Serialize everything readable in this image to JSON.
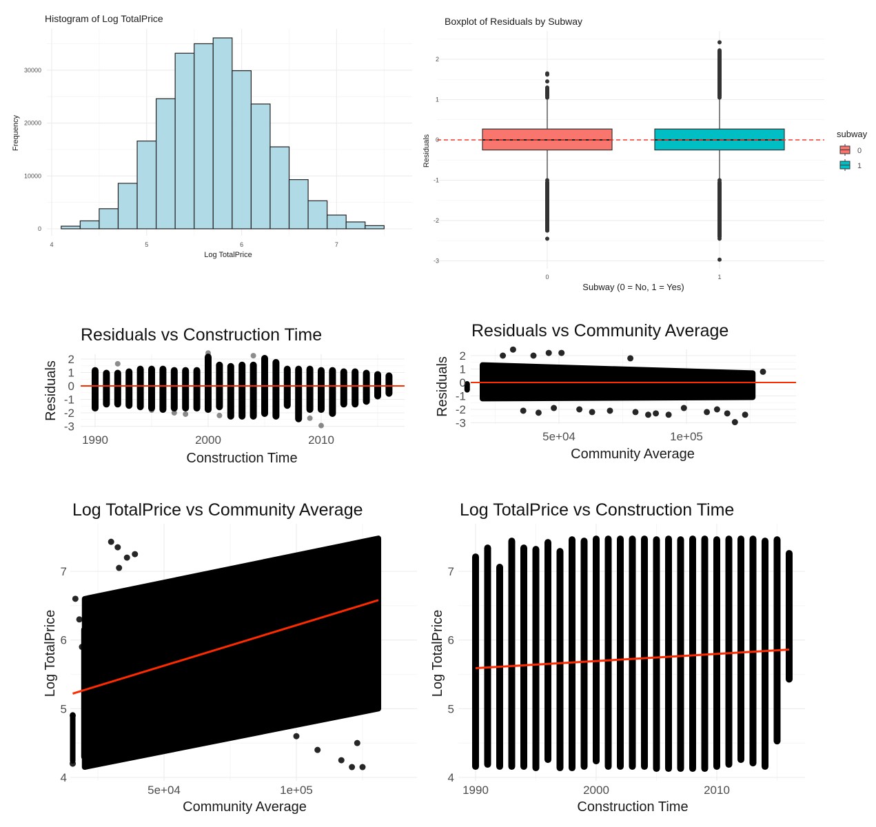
{
  "chart_data": [
    {
      "id": "hist",
      "type": "bar",
      "title": "Histogram of Log TotalPrice",
      "xlabel": "Log TotalPrice",
      "ylabel": "Frequency",
      "bin_width": 0.2,
      "bin_starts": [
        4.1,
        4.3,
        4.5,
        4.7,
        4.9,
        5.1,
        5.3,
        5.5,
        5.7,
        5.9,
        6.1,
        6.3,
        6.5,
        6.7,
        6.9,
        7.1,
        7.3
      ],
      "values": [
        500,
        1500,
        3800,
        8600,
        16600,
        24600,
        33200,
        35000,
        36100,
        29900,
        23600,
        15500,
        9300,
        5300,
        2600,
        1300,
        600
      ],
      "xlim": [
        4,
        7.65
      ],
      "ylim": [
        0,
        36500
      ],
      "x_ticks": [
        4,
        5,
        6,
        7
      ],
      "y_ticks": [
        0,
        10000,
        20000,
        30000
      ],
      "fill": "#add8e6",
      "grid": true
    },
    {
      "id": "box",
      "type": "box",
      "title": "Boxplot of Residuals by Subway",
      "xlabel": "Subway (0 = No, 1 = Yes)",
      "ylabel": "Residuals",
      "categories": [
        "0",
        "1"
      ],
      "series": [
        {
          "name": "0",
          "q1": -0.25,
          "median": 0.0,
          "q3": 0.27,
          "whisker_low": -1.0,
          "whisker_high": 1.03,
          "outliers_high": [
            1.05,
            1.1,
            1.15,
            1.2,
            1.25,
            1.3,
            1.45,
            1.62,
            1.65
          ],
          "outliers_low": [
            -1.0,
            -1.1,
            -1.2,
            -1.3,
            -1.4,
            -1.5,
            -1.6,
            -1.7,
            -1.8,
            -1.9,
            -2.0,
            -2.1,
            -2.2,
            -2.25,
            -2.45
          ],
          "color": "#f8766d"
        },
        {
          "name": "1",
          "q1": -0.25,
          "median": 0.0,
          "q3": 0.27,
          "whisker_low": -1.0,
          "whisker_high": 1.03,
          "outliers_high": [
            1.05,
            1.15,
            1.25,
            1.35,
            1.45,
            1.55,
            1.65,
            1.75,
            1.85,
            1.95,
            2.05,
            2.15,
            2.22,
            2.42
          ],
          "outliers_low": [
            -1.0,
            -1.1,
            -1.2,
            -1.3,
            -1.4,
            -1.5,
            -1.6,
            -1.7,
            -1.8,
            -1.9,
            -2.0,
            -2.1,
            -2.2,
            -2.3,
            -2.4,
            -2.45,
            -2.97
          ],
          "color": "#00bfc4"
        }
      ],
      "reference_line": 0,
      "ylim": [
        -3.15,
        2.5
      ],
      "y_ticks": [
        -3,
        -2,
        -1,
        0,
        1,
        2
      ],
      "legend": {
        "title": "subway",
        "entries": [
          "0",
          "1"
        ],
        "position": "right"
      },
      "grid": true
    },
    {
      "id": "res-ct",
      "type": "scatter",
      "title": "Residuals vs Construction Time",
      "xlabel": "Construction Time",
      "ylabel": "Residuals",
      "x_ticks": [
        1990,
        2000,
        2010
      ],
      "y_ticks": [
        -3,
        -2,
        -1,
        0,
        1,
        2
      ],
      "xlim": [
        1988.6,
        2016.8
      ],
      "ylim": [
        -3.15,
        2.5
      ],
      "columns": [
        {
          "x": 1990,
          "lo": -1.7,
          "hi": 1.2
        },
        {
          "x": 1991,
          "lo": -1.4,
          "hi": 1.0
        },
        {
          "x": 1992,
          "lo": -1.4,
          "hi": 1.0,
          "extra": [
            1.65
          ]
        },
        {
          "x": 1993,
          "lo": -1.5,
          "hi": 1.1
        },
        {
          "x": 1994,
          "lo": -1.6,
          "hi": 1.3
        },
        {
          "x": 1995,
          "lo": -1.7,
          "hi": 1.3,
          "extra": [
            -1.8
          ]
        },
        {
          "x": 1996,
          "lo": -1.8,
          "hi": 1.3
        },
        {
          "x": 1997,
          "lo": -1.7,
          "hi": 1.2,
          "extra": [
            -2.0
          ]
        },
        {
          "x": 1998,
          "lo": -1.7,
          "hi": 1.2,
          "extra": [
            -2.1
          ]
        },
        {
          "x": 1999,
          "lo": -1.7,
          "hi": 1.2
        },
        {
          "x": 2000,
          "lo": -1.8,
          "hi": 2.2,
          "extra": [
            2.45
          ]
        },
        {
          "x": 2001,
          "lo": -1.6,
          "hi": 1.6,
          "extra": [
            -2.2
          ]
        },
        {
          "x": 2002,
          "lo": -2.3,
          "hi": 1.5
        },
        {
          "x": 2003,
          "lo": -2.3,
          "hi": 1.6
        },
        {
          "x": 2004,
          "lo": -2.3,
          "hi": 1.6,
          "extra": [
            2.25
          ]
        },
        {
          "x": 2005,
          "lo": -2.1,
          "hi": 2.1
        },
        {
          "x": 2006,
          "lo": -2.3,
          "hi": 1.8
        },
        {
          "x": 2007,
          "lo": -1.5,
          "hi": 1.3
        },
        {
          "x": 2008,
          "lo": -2.5,
          "hi": 1.3
        },
        {
          "x": 2009,
          "lo": -1.8,
          "hi": 1.3,
          "extra": [
            -2.4
          ]
        },
        {
          "x": 2010,
          "lo": -1.8,
          "hi": 1.2,
          "extra": [
            -2.95
          ]
        },
        {
          "x": 2011,
          "lo": -2.1,
          "hi": 1.2
        },
        {
          "x": 2012,
          "lo": -1.4,
          "hi": 1.1
        },
        {
          "x": 2013,
          "lo": -1.4,
          "hi": 1.1
        },
        {
          "x": 2014,
          "lo": -1.2,
          "hi": 1.0
        },
        {
          "x": 2015,
          "lo": -0.8,
          "hi": 0.9
        },
        {
          "x": 2016,
          "lo": -0.6,
          "hi": 0.8
        }
      ],
      "fit_line": {
        "x": [
          1988.6,
          2016.8
        ],
        "y": [
          0,
          0
        ],
        "color": "#ff2a00"
      },
      "grid": true
    },
    {
      "id": "res-ca",
      "type": "scatter",
      "title": "Residuals vs Community Average",
      "xlabel": "Community Average",
      "ylabel": "Residuals",
      "x_ticks": [
        50000,
        100000
      ],
      "x_tick_labels": [
        "5e+04",
        "1e+05"
      ],
      "y_ticks": [
        -3,
        -2,
        -1,
        0,
        1,
        2
      ],
      "xlim": [
        10000,
        134000
      ],
      "ylim": [
        -3.15,
        2.5
      ],
      "band": {
        "x_from": 20000,
        "x_to": 126000,
        "lo_start": -1.2,
        "lo_end": -1.1,
        "hi_start": 1.3,
        "hi_end": 0.7
      },
      "outliers": [
        [
          21000,
          0.7
        ],
        [
          24000,
          -1.1
        ],
        [
          28000,
          2.0
        ],
        [
          32000,
          2.45
        ],
        [
          36000,
          -2.1
        ],
        [
          40000,
          2.0
        ],
        [
          42000,
          -2.25
        ],
        [
          46000,
          2.2
        ],
        [
          48000,
          -1.9
        ],
        [
          51000,
          2.2
        ],
        [
          58000,
          -2.0
        ],
        [
          63000,
          -2.2
        ],
        [
          70000,
          -2.1
        ],
        [
          78000,
          1.8
        ],
        [
          80000,
          -2.2
        ],
        [
          85000,
          -2.4
        ],
        [
          88000,
          -2.3
        ],
        [
          93000,
          -2.4
        ],
        [
          99000,
          -1.9
        ],
        [
          108000,
          -2.2
        ],
        [
          112000,
          -2.0
        ],
        [
          116000,
          -2.3
        ],
        [
          119000,
          -2.95
        ],
        [
          123000,
          -2.4
        ],
        [
          130000,
          0.8
        ]
      ],
      "fit_line": {
        "x": [
          10000,
          134000
        ],
        "y": [
          0,
          0
        ],
        "color": "#ff2a00"
      },
      "grid": true
    },
    {
      "id": "lp-ca",
      "type": "scatter",
      "title": "Log TotalPrice vs Community Average",
      "xlabel": "Community Average",
      "ylabel": "Log TotalPrice",
      "x_ticks": [
        50000,
        100000
      ],
      "x_tick_labels": [
        "5e+04",
        "1e+05"
      ],
      "y_ticks": [
        4,
        5,
        6,
        7
      ],
      "xlim": [
        10000,
        134000
      ],
      "ylim": [
        3.98,
        7.52
      ],
      "band": {
        "x_from": 20000,
        "x_to": 131000,
        "lo_start": 4.15,
        "lo_end": 5.0,
        "hi_start": 6.6,
        "hi_end": 7.48
      },
      "outliers": [
        [
          15500,
          4.2
        ],
        [
          15500,
          4.9
        ],
        [
          16500,
          6.6
        ],
        [
          18000,
          6.3
        ],
        [
          19000,
          5.9
        ],
        [
          30000,
          7.43
        ],
        [
          32500,
          7.35
        ],
        [
          33000,
          7.05
        ],
        [
          36000,
          7.2
        ],
        [
          39000,
          7.25
        ],
        [
          100000,
          4.6
        ],
        [
          108000,
          4.4
        ],
        [
          117000,
          4.25
        ],
        [
          121000,
          4.15
        ],
        [
          125000,
          4.15
        ],
        [
          123000,
          4.5
        ]
      ],
      "fit_line": {
        "x": [
          15500,
          131000
        ],
        "y": [
          5.22,
          6.58
        ],
        "color": "#ff2a00"
      },
      "grid": true
    },
    {
      "id": "lp-ct",
      "type": "scatter",
      "title": "Log TotalPrice vs Construction Time",
      "xlabel": "Construction Time",
      "ylabel": "Log TotalPrice",
      "x_ticks": [
        1990,
        2000,
        2010
      ],
      "y_ticks": [
        4,
        5,
        6,
        7
      ],
      "xlim": [
        1988.6,
        2017.2
      ],
      "ylim": [
        3.98,
        7.52
      ],
      "columns": [
        {
          "x": 1990,
          "lo": 4.15,
          "hi": 7.22
        },
        {
          "x": 1991,
          "lo": 4.18,
          "hi": 7.35
        },
        {
          "x": 1992,
          "lo": 4.15,
          "hi": 7.07
        },
        {
          "x": 1993,
          "lo": 4.15,
          "hi": 7.45
        },
        {
          "x": 1994,
          "lo": 4.15,
          "hi": 7.35
        },
        {
          "x": 1995,
          "lo": 4.13,
          "hi": 7.33
        },
        {
          "x": 1996,
          "lo": 4.25,
          "hi": 7.43
        },
        {
          "x": 1997,
          "lo": 4.13,
          "hi": 7.3
        },
        {
          "x": 1998,
          "lo": 4.13,
          "hi": 7.47
        },
        {
          "x": 1999,
          "lo": 4.15,
          "hi": 7.45
        },
        {
          "x": 2000,
          "lo": 4.23,
          "hi": 7.48
        },
        {
          "x": 2001,
          "lo": 4.15,
          "hi": 7.48
        },
        {
          "x": 2002,
          "lo": 4.15,
          "hi": 7.48
        },
        {
          "x": 2003,
          "lo": 4.15,
          "hi": 7.48
        },
        {
          "x": 2004,
          "lo": 4.15,
          "hi": 7.48
        },
        {
          "x": 2005,
          "lo": 4.12,
          "hi": 7.47
        },
        {
          "x": 2006,
          "lo": 4.12,
          "hi": 7.48
        },
        {
          "x": 2007,
          "lo": 4.12,
          "hi": 7.47
        },
        {
          "x": 2008,
          "lo": 4.12,
          "hi": 7.48
        },
        {
          "x": 2009,
          "lo": 4.12,
          "hi": 7.48
        },
        {
          "x": 2010,
          "lo": 4.15,
          "hi": 7.47
        },
        {
          "x": 2011,
          "lo": 4.18,
          "hi": 7.48
        },
        {
          "x": 2012,
          "lo": 4.25,
          "hi": 7.48
        },
        {
          "x": 2013,
          "lo": 4.2,
          "hi": 7.48
        },
        {
          "x": 2014,
          "lo": 4.15,
          "hi": 7.45
        },
        {
          "x": 2015,
          "lo": 4.52,
          "hi": 7.47
        },
        {
          "x": 2016,
          "lo": 5.42,
          "hi": 7.27
        }
      ],
      "fit_line": {
        "x": [
          1990,
          2016
        ],
        "y": [
          5.59,
          5.86
        ],
        "color": "#ff2a00"
      },
      "grid": true
    }
  ]
}
